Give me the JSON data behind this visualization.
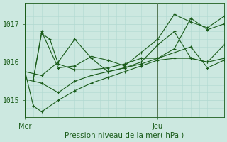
{
  "background_color": "#cce8e0",
  "grid_color": "#b0d8d0",
  "line_color": "#1a5c1a",
  "marker_color": "#1a5c1a",
  "xlabel": "Pression niveau de la mer( hPa )",
  "ylabel_ticks": [
    1015,
    1016,
    1017
  ],
  "ylim": [
    1014.55,
    1017.55
  ],
  "xlim": [
    0,
    72
  ],
  "x_mer": 0,
  "x_jeu": 48,
  "series": [
    {
      "x": [
        0,
        3,
        6,
        12,
        18,
        24,
        30,
        36,
        42,
        48,
        54,
        60,
        66,
        72
      ],
      "y": [
        1015.75,
        1014.85,
        1014.7,
        1015.0,
        1015.25,
        1015.45,
        1015.6,
        1015.75,
        1015.9,
        1016.05,
        1016.1,
        1016.1,
        1016.0,
        1016.1
      ]
    },
    {
      "x": [
        0,
        6,
        12,
        18,
        24,
        30,
        36,
        42,
        48,
        54,
        60,
        66,
        72
      ],
      "y": [
        1015.75,
        1015.65,
        1016.0,
        1016.6,
        1016.1,
        1015.75,
        1015.85,
        1016.0,
        1016.45,
        1016.8,
        1016.1,
        1016.0,
        1016.45
      ]
    },
    {
      "x": [
        3,
        6,
        9,
        12,
        18,
        24,
        30,
        36,
        42,
        48,
        54,
        60,
        66,
        72
      ],
      "y": [
        1015.55,
        1016.75,
        1016.6,
        1015.95,
        1015.8,
        1015.8,
        1015.85,
        1015.95,
        1016.1,
        1016.1,
        1016.35,
        1017.15,
        1016.85,
        1017.0
      ]
    },
    {
      "x": [
        3,
        6,
        12,
        18,
        24,
        30,
        36,
        42,
        48,
        54,
        60,
        66,
        72
      ],
      "y": [
        1015.55,
        1016.8,
        1015.85,
        1015.9,
        1016.15,
        1016.05,
        1015.9,
        1016.25,
        1016.6,
        1017.25,
        1017.05,
        1016.9,
        1017.2
      ]
    },
    {
      "x": [
        0,
        6,
        12,
        18,
        24,
        30,
        36,
        42,
        48,
        54,
        60,
        66,
        72
      ],
      "y": [
        1015.55,
        1015.45,
        1015.2,
        1015.5,
        1015.65,
        1015.75,
        1015.85,
        1015.95,
        1016.1,
        1016.25,
        1016.4,
        1015.85,
        1016.05
      ]
    }
  ]
}
